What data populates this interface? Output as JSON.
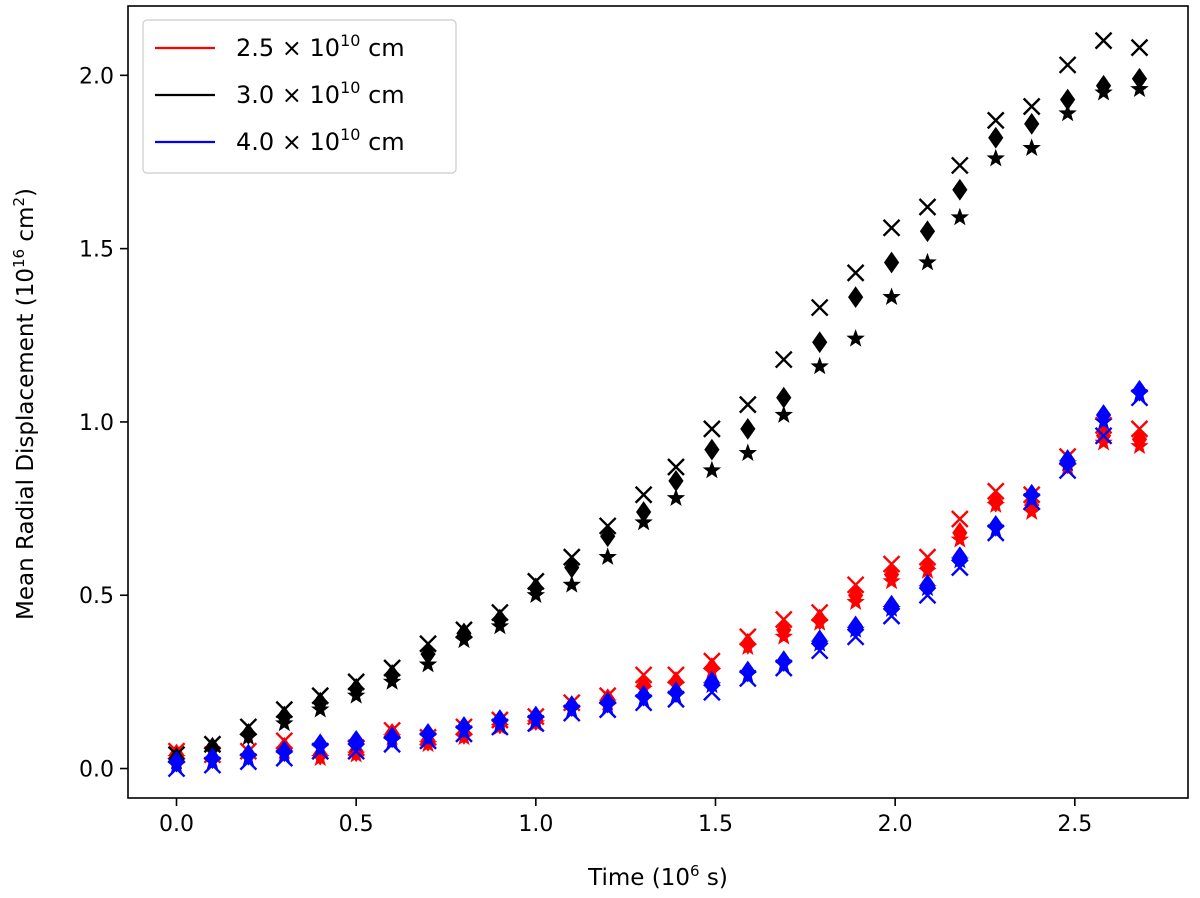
{
  "chart_data": {
    "type": "scatter",
    "title": "",
    "xlabel": {
      "prefix": "Time (10",
      "sup": "6",
      "suffix": " s)"
    },
    "ylabel": {
      "prefix": "Mean Radial Displacement (10",
      "sup1": "16",
      "mid": " cm",
      "sup2": "2",
      "suffix": ")"
    },
    "xlim": [
      -0.135,
      2.815
    ],
    "ylim": [
      -0.085,
      2.2
    ],
    "xticks": [
      0.0,
      0.5,
      1.0,
      1.5,
      2.0,
      2.5
    ],
    "xtick_labels": [
      "0.0",
      "0.5",
      "1.0",
      "1.5",
      "2.0",
      "2.5"
    ],
    "yticks": [
      0.0,
      0.5,
      1.0,
      1.5,
      2.0
    ],
    "ytick_labels": [
      "0.0",
      "0.5",
      "1.0",
      "1.5",
      "2.0"
    ],
    "grid": false,
    "legend_position": "upper-left",
    "marker_types": [
      "x",
      "diamond",
      "star"
    ],
    "x": [
      0.0,
      0.1,
      0.2,
      0.3,
      0.4,
      0.5,
      0.6,
      0.7,
      0.8,
      0.9,
      1.0,
      1.1,
      1.2,
      1.3,
      1.39,
      1.49,
      1.59,
      1.69,
      1.79,
      1.89,
      1.99,
      2.09,
      2.18,
      2.28,
      2.38,
      2.48,
      2.58,
      2.68
    ],
    "series": [
      {
        "label": {
          "prefix": "2.5 × 10",
          "sup": "10",
          "suffix": " cm"
        },
        "color": "#ff0000",
        "x_marker": [
          0.05,
          0.04,
          0.05,
          0.08,
          0.05,
          0.06,
          0.11,
          0.09,
          0.12,
          0.14,
          0.15,
          0.19,
          0.21,
          0.27,
          0.27,
          0.31,
          0.38,
          0.43,
          0.45,
          0.53,
          0.59,
          0.61,
          0.72,
          0.8,
          0.79,
          0.9,
          0.99,
          0.98
        ],
        "diamond": [
          0.04,
          0.03,
          0.04,
          0.06,
          0.04,
          0.05,
          0.1,
          0.08,
          0.1,
          0.13,
          0.14,
          0.18,
          0.2,
          0.24,
          0.25,
          0.29,
          0.36,
          0.4,
          0.43,
          0.5,
          0.56,
          0.58,
          0.68,
          0.77,
          0.76,
          0.88,
          0.96,
          0.95
        ],
        "star": [
          0.03,
          0.02,
          0.03,
          0.05,
          0.03,
          0.04,
          0.09,
          0.07,
          0.09,
          0.12,
          0.13,
          0.17,
          0.19,
          0.23,
          0.24,
          0.28,
          0.35,
          0.38,
          0.42,
          0.48,
          0.54,
          0.57,
          0.66,
          0.76,
          0.74,
          0.87,
          0.94,
          0.93
        ]
      },
      {
        "label": {
          "prefix": "3.0 × 10",
          "sup": "10",
          "suffix": " cm"
        },
        "color": "#000000",
        "x_marker": [
          0.04,
          0.07,
          0.12,
          0.17,
          0.21,
          0.25,
          0.29,
          0.36,
          0.4,
          0.45,
          0.54,
          0.61,
          0.7,
          0.79,
          0.87,
          0.98,
          1.05,
          1.18,
          1.33,
          1.43,
          1.56,
          1.62,
          1.74,
          1.87,
          1.91,
          2.03,
          2.1,
          2.08
        ],
        "diamond": [
          0.03,
          0.06,
          0.1,
          0.15,
          0.19,
          0.23,
          0.27,
          0.33,
          0.39,
          0.43,
          0.52,
          0.58,
          0.67,
          0.74,
          0.83,
          0.92,
          0.98,
          1.07,
          1.23,
          1.36,
          1.46,
          1.55,
          1.67,
          1.82,
          1.86,
          1.93,
          1.97,
          1.99
        ],
        "star": [
          0.02,
          0.05,
          0.09,
          0.13,
          0.17,
          0.21,
          0.25,
          0.3,
          0.37,
          0.41,
          0.5,
          0.53,
          0.61,
          0.71,
          0.78,
          0.86,
          0.91,
          1.02,
          1.16,
          1.24,
          1.36,
          1.46,
          1.59,
          1.76,
          1.79,
          1.89,
          1.95,
          1.96
        ]
      },
      {
        "label": {
          "prefix": "4.0 × 10",
          "sup": "10",
          "suffix": " cm"
        },
        "color": "#0000ff",
        "x_marker": [
          0.0,
          0.01,
          0.02,
          0.03,
          0.05,
          0.05,
          0.07,
          0.08,
          0.1,
          0.12,
          0.13,
          0.16,
          0.17,
          0.19,
          0.2,
          0.22,
          0.26,
          0.29,
          0.34,
          0.38,
          0.44,
          0.5,
          0.58,
          0.68,
          0.77,
          0.86,
          0.96,
          1.07
        ],
        "diamond": [
          0.02,
          0.03,
          0.04,
          0.05,
          0.07,
          0.08,
          0.09,
          0.1,
          0.12,
          0.14,
          0.15,
          0.18,
          0.19,
          0.21,
          0.22,
          0.25,
          0.28,
          0.31,
          0.37,
          0.41,
          0.47,
          0.53,
          0.61,
          0.7,
          0.79,
          0.89,
          1.02,
          1.09
        ],
        "star": [
          0.01,
          0.02,
          0.03,
          0.04,
          0.06,
          0.07,
          0.08,
          0.09,
          0.11,
          0.13,
          0.14,
          0.17,
          0.18,
          0.2,
          0.21,
          0.24,
          0.27,
          0.3,
          0.36,
          0.4,
          0.46,
          0.52,
          0.6,
          0.69,
          0.78,
          0.88,
          1.0,
          1.08
        ]
      }
    ]
  }
}
